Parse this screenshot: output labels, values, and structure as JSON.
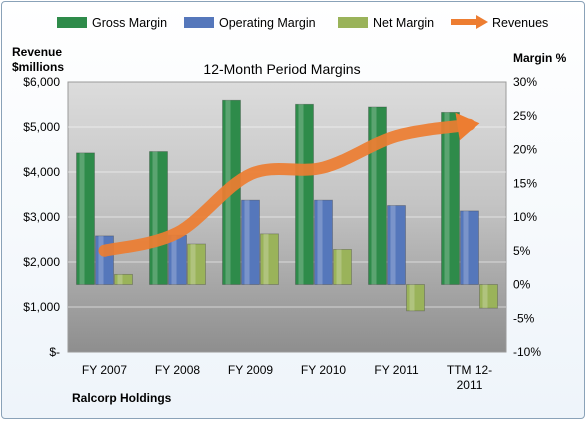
{
  "chart_data": {
    "type": "bar",
    "title": "12-Month Period Margins",
    "company": "Ralcorp Holdings",
    "left_axis_label": [
      "Revenue",
      "$millions"
    ],
    "right_axis_label": "Margin %",
    "categories": [
      "FY 2007",
      "FY 2008",
      "FY 2009",
      "FY 2010",
      "FY 2011",
      "TTM 12-2011"
    ],
    "category_labels": [
      [
        "FY 2007"
      ],
      [
        "FY 2008"
      ],
      [
        "FY 2009"
      ],
      [
        "FY 2010"
      ],
      [
        "FY 2011"
      ],
      [
        "TTM 12-",
        "2011"
      ]
    ],
    "left_ticks": [
      "$-",
      "$1,000",
      "$2,000",
      "$3,000",
      "$4,000",
      "$5,000",
      "$6,000"
    ],
    "left_ylim": [
      0,
      6000
    ],
    "right_ticks": [
      "-10%",
      "-5%",
      "0%",
      "5%",
      "10%",
      "15%",
      "20%",
      "25%",
      "30%"
    ],
    "right_ylim": [
      -10,
      30
    ],
    "legend_position": "top",
    "gridlines": true,
    "series": [
      {
        "name": "Gross Margin",
        "axis": "right",
        "kind": "bar",
        "color": "#2e8b4a",
        "values": [
          19.5,
          19.7,
          27.3,
          26.7,
          26.3,
          25.5
        ]
      },
      {
        "name": "Operating Margin",
        "axis": "right",
        "kind": "bar",
        "color": "#5577bb",
        "values": [
          7.2,
          7.3,
          12.5,
          12.5,
          11.7,
          10.9
        ]
      },
      {
        "name": "Net Margin",
        "axis": "right",
        "kind": "bar",
        "color": "#9ab35a",
        "values": [
          1.5,
          6.0,
          7.5,
          5.2,
          -3.9,
          -3.5
        ]
      },
      {
        "name": "Revenues",
        "axis": "left",
        "kind": "line",
        "color": "#ed7d31",
        "values": [
          2250,
          2650,
          3950,
          4100,
          4800,
          5050
        ]
      }
    ]
  }
}
